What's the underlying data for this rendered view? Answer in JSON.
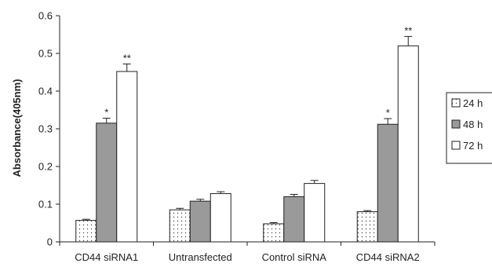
{
  "chart_data": {
    "type": "bar",
    "title": "",
    "xlabel": "",
    "ylabel": "Absorbance(405nm)",
    "ylim": [
      0,
      0.6
    ],
    "yticks": [
      0,
      0.1,
      0.2,
      0.3,
      0.4,
      0.5,
      0.6
    ],
    "ytick_labels": [
      "0",
      "0.1",
      "0.2",
      "0.3",
      "0.4",
      "0.5",
      "0.6"
    ],
    "grid": false,
    "legend_position": "right",
    "categories": [
      "CD44 siRNA1",
      "Untransfected",
      "Control siRNA",
      "CD44 siRNA2"
    ],
    "series": [
      {
        "name": "24 h",
        "fill": "dotted",
        "color": "#ffffff",
        "values": [
          0.057,
          0.085,
          0.048,
          0.08
        ],
        "errors": [
          0.003,
          0.004,
          0.003,
          0.003
        ]
      },
      {
        "name": "48 h",
        "fill": "solid",
        "color": "#9a9a9a",
        "values": [
          0.315,
          0.108,
          0.12,
          0.312
        ],
        "errors": [
          0.013,
          0.005,
          0.006,
          0.015
        ]
      },
      {
        "name": "72 h",
        "fill": "solid",
        "color": "#ffffff",
        "values": [
          0.452,
          0.128,
          0.155,
          0.52
        ],
        "errors": [
          0.02,
          0.005,
          0.008,
          0.025
        ]
      }
    ],
    "annotations": [
      {
        "category": "CD44 siRNA1",
        "series": "48 h",
        "text": "*"
      },
      {
        "category": "CD44 siRNA1",
        "series": "72 h",
        "text": "**"
      },
      {
        "category": "CD44 siRNA2",
        "series": "48 h",
        "text": "*"
      },
      {
        "category": "CD44 siRNA2",
        "series": "72 h",
        "text": "**"
      }
    ]
  }
}
